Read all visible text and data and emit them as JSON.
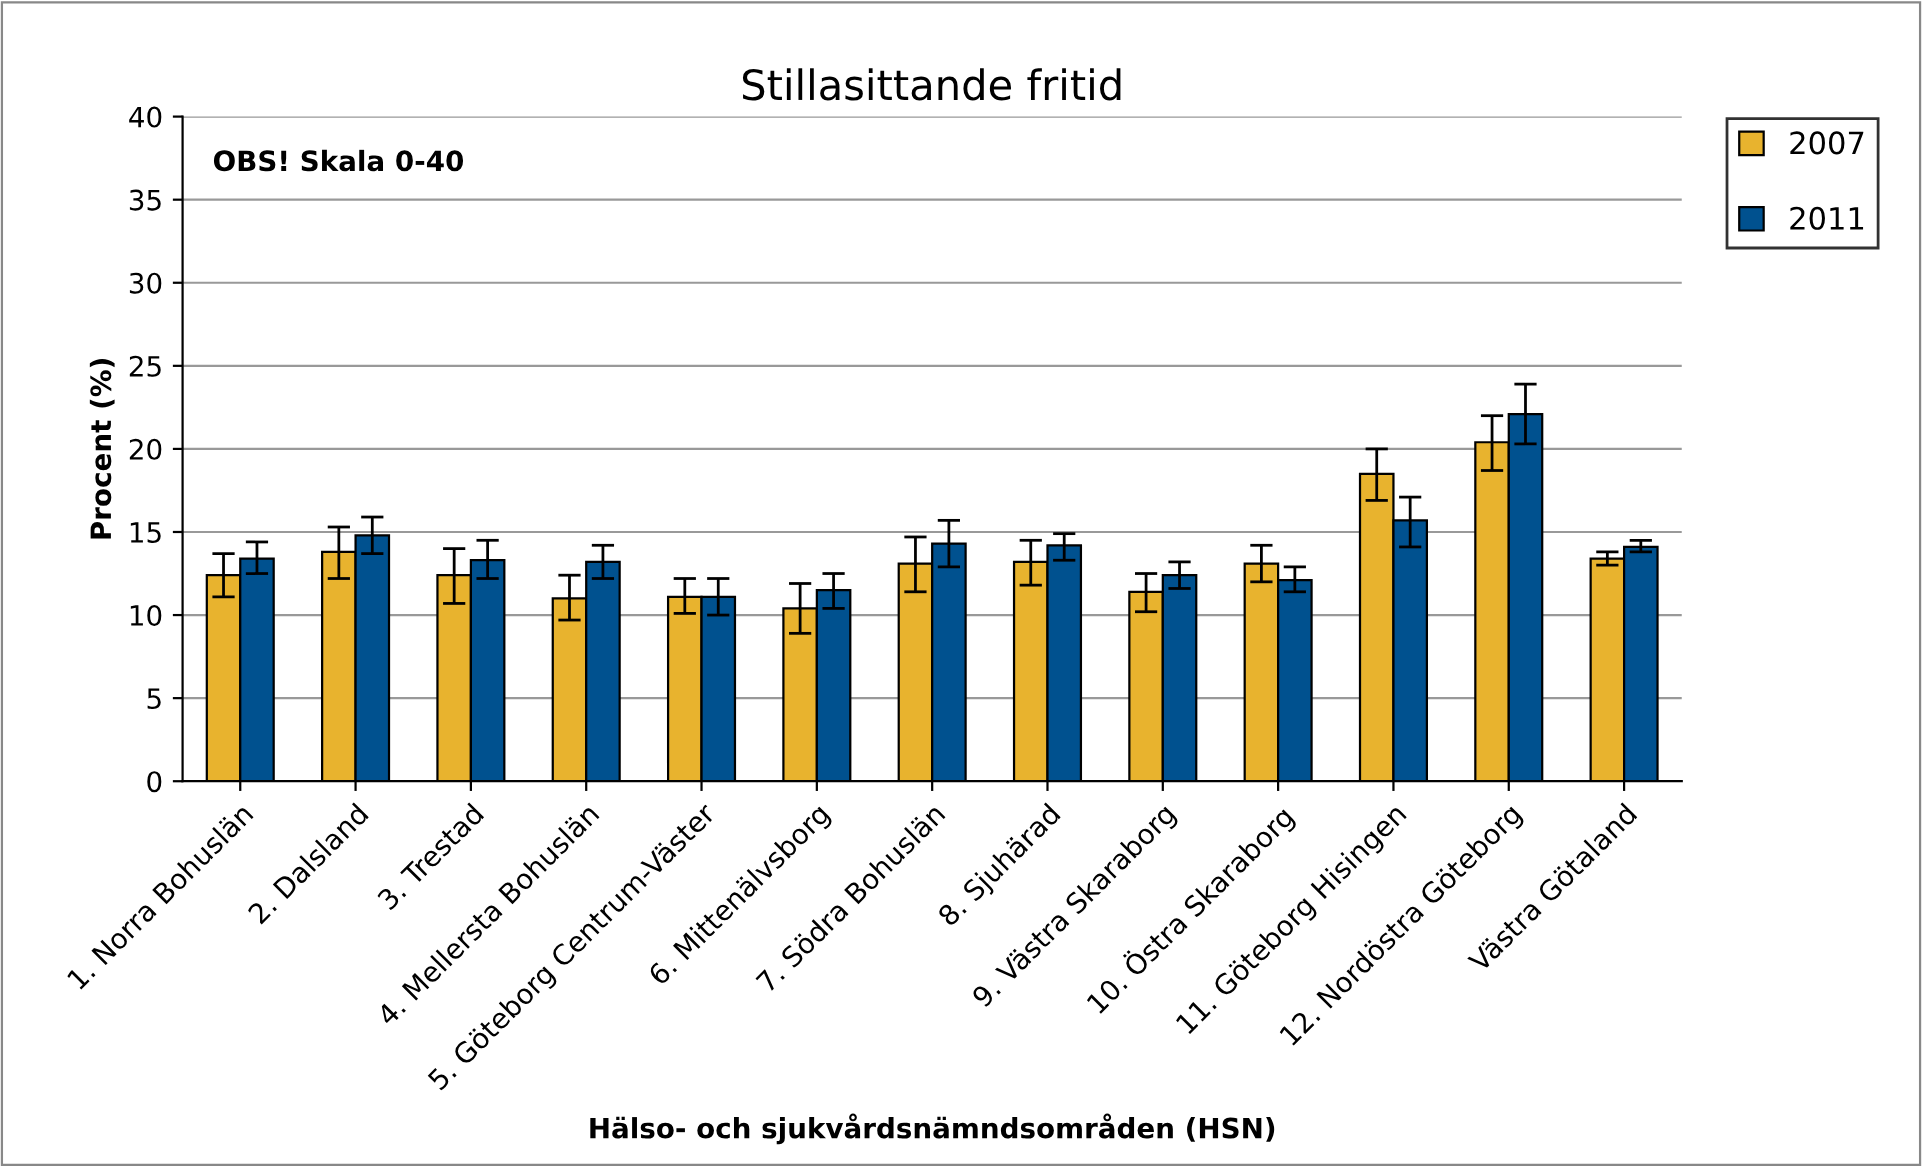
{
  "chart_data": {
    "type": "bar",
    "title": "Stillasittande fritid",
    "xlabel": "Hälso- och sjukvårdsnämndsområden (HSN)",
    "ylabel": "Procent (%)",
    "categories": [
      "1. Norra Bohuslän",
      "2. Dalsland",
      "3. Trestad",
      "4. Mellersta Bohuslän",
      "5. Göteborg Centrum-Väster",
      "6. Mittenälvsborg",
      "7. Södra Bohuslän",
      "8. Sjuhärad",
      "9. Västra Skaraborg",
      "10. Östra Skaraborg",
      "11. Göteborg Hisingen",
      "12. Nordöstra Göteborg",
      "Västra Götaland"
    ],
    "series": [
      {
        "name": "2007",
        "color": "#e8b32e",
        "values": [
          12.4,
          13.8,
          12.4,
          11.0,
          11.1,
          10.4,
          13.1,
          13.2,
          11.4,
          13.1,
          18.5,
          20.4,
          13.4
        ],
        "errors": [
          [
            11.1,
            13.7
          ],
          [
            12.2,
            15.3
          ],
          [
            10.7,
            14.0
          ],
          [
            9.7,
            12.4
          ],
          [
            10.1,
            12.2
          ],
          [
            8.9,
            11.9
          ],
          [
            11.4,
            14.7
          ],
          [
            11.8,
            14.5
          ],
          [
            10.2,
            12.5
          ],
          [
            12.0,
            14.2
          ],
          [
            16.9,
            20.0
          ],
          [
            18.7,
            22.0
          ],
          [
            13.0,
            13.8
          ]
        ]
      },
      {
        "name": "2011",
        "color": "#00518f",
        "values": [
          13.4,
          14.8,
          13.3,
          13.2,
          11.1,
          11.5,
          14.3,
          14.2,
          12.4,
          12.1,
          15.7,
          22.1,
          14.1
        ],
        "errors": [
          [
            12.5,
            14.4
          ],
          [
            13.7,
            15.9
          ],
          [
            12.2,
            14.5
          ],
          [
            12.2,
            14.2
          ],
          [
            10.0,
            12.2
          ],
          [
            10.4,
            12.5
          ],
          [
            12.9,
            15.7
          ],
          [
            13.3,
            14.9
          ],
          [
            11.6,
            13.2
          ],
          [
            11.4,
            12.9
          ],
          [
            14.1,
            17.1
          ],
          [
            20.3,
            23.9
          ],
          [
            13.8,
            14.5
          ]
        ]
      }
    ],
    "ylim": [
      0,
      40
    ],
    "yticks": [
      0,
      5,
      10,
      15,
      20,
      25,
      30,
      35,
      40
    ],
    "grid": "y",
    "legend": "top right",
    "annotations": [
      "OBS! Skala 0-40"
    ]
  }
}
